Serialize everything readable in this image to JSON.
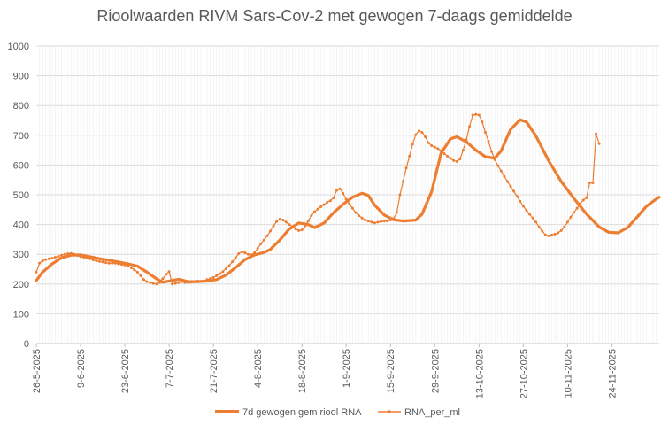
{
  "chart_data": {
    "type": "line",
    "title": "Rioolwaarden RIVM Sars-Cov-2 met gewogen 7-daags gemiddelde",
    "xlabel": "",
    "ylabel": "",
    "ylim": [
      0,
      1000
    ],
    "ytick_labels": [
      "0",
      "100",
      "200",
      "300",
      "400",
      "500",
      "600",
      "700",
      "800",
      "900",
      "1000"
    ],
    "xlim": [
      "26-5-2025",
      "8-12-2025"
    ],
    "xtick_labels": [
      "26-5-2025",
      "9-6-2025",
      "23-6-2025",
      "7-7-2025",
      "21-7-2025",
      "4-8-2025",
      "18-8-2025",
      "1-9-2025",
      "15-9-2025",
      "29-9-2025",
      "13-10-2025",
      "27-10-2025",
      "10-11-2025",
      "24-11-2025"
    ],
    "grid": true,
    "legend_position": "bottom",
    "colors": {
      "smoothed": "#ED7D31",
      "raw": "#ED7D31",
      "grid": "#D9D9D9",
      "axis": "#BFBFBF",
      "text": "#595959"
    },
    "series": [
      {
        "name": "7d gewogen gem riool RNA",
        "style": "thick-line",
        "points": [
          [
            "26-5-2025",
            212
          ],
          [
            "28-5-2025",
            240
          ],
          [
            "31-5-2025",
            268
          ],
          [
            "3-6-2025",
            288
          ],
          [
            "6-6-2025",
            297
          ],
          [
            "9-6-2025",
            298
          ],
          [
            "12-6-2025",
            292
          ],
          [
            "15-6-2025",
            285
          ],
          [
            "18-6-2025",
            280
          ],
          [
            "21-6-2025",
            274
          ],
          [
            "24-6-2025",
            268
          ],
          [
            "27-6-2025",
            260
          ],
          [
            "30-6-2025",
            240
          ],
          [
            "3-7-2025",
            218
          ],
          [
            "5-7-2025",
            206
          ],
          [
            "7-7-2025",
            210
          ],
          [
            "10-7-2025",
            216
          ],
          [
            "13-7-2025",
            208
          ],
          [
            "16-7-2025",
            208
          ],
          [
            "19-7-2025",
            210
          ],
          [
            "22-7-2025",
            215
          ],
          [
            "25-7-2025",
            230
          ],
          [
            "28-7-2025",
            255
          ],
          [
            "31-7-2025",
            282
          ],
          [
            "3-8-2025",
            298
          ],
          [
            "6-8-2025",
            306
          ],
          [
            "8-8-2025",
            316
          ],
          [
            "11-8-2025",
            348
          ],
          [
            "14-8-2025",
            385
          ],
          [
            "17-8-2025",
            405
          ],
          [
            "20-8-2025",
            400
          ],
          [
            "22-8-2025",
            390
          ],
          [
            "25-8-2025",
            405
          ],
          [
            "28-8-2025",
            440
          ],
          [
            "31-8-2025",
            468
          ],
          [
            "3-9-2025",
            492
          ],
          [
            "6-9-2025",
            505
          ],
          [
            "8-9-2025",
            498
          ],
          [
            "10-9-2025",
            465
          ],
          [
            "13-9-2025",
            432
          ],
          [
            "16-9-2025",
            416
          ],
          [
            "19-9-2025",
            412
          ],
          [
            "23-9-2025",
            415
          ],
          [
            "25-9-2025",
            435
          ],
          [
            "28-9-2025",
            510
          ],
          [
            "1-10-2025",
            640
          ],
          [
            "4-10-2025",
            688
          ],
          [
            "6-10-2025",
            695
          ],
          [
            "9-10-2025",
            678
          ],
          [
            "12-10-2025",
            650
          ],
          [
            "15-10-2025",
            628
          ],
          [
            "18-10-2025",
            623
          ],
          [
            "20-10-2025",
            648
          ],
          [
            "23-10-2025",
            720
          ],
          [
            "26-10-2025",
            752
          ],
          [
            "28-10-2025",
            745
          ],
          [
            "31-10-2025",
            698
          ],
          [
            "4-11-2025",
            615
          ],
          [
            "8-11-2025",
            545
          ],
          [
            "12-11-2025",
            488
          ],
          [
            "16-11-2025",
            435
          ],
          [
            "20-11-2025",
            392
          ],
          [
            "23-11-2025",
            374
          ],
          [
            "26-11-2025",
            372
          ],
          [
            "29-11-2025",
            390
          ],
          [
            "2-12-2025",
            425
          ],
          [
            "5-12-2025",
            462
          ],
          [
            "8-12-2025",
            485
          ],
          [
            "9-12-2025",
            492
          ]
        ]
      },
      {
        "name": "RNA_per_ml",
        "style": "thin-line-with-markers",
        "points": [
          [
            "26-5-2025",
            240
          ],
          [
            "27-5-2025",
            270
          ],
          [
            "28-5-2025",
            278
          ],
          [
            "29-5-2025",
            282
          ],
          [
            "30-5-2025",
            285
          ],
          [
            "31-5-2025",
            287
          ],
          [
            "1-6-2025",
            290
          ],
          [
            "2-6-2025",
            293
          ],
          [
            "3-6-2025",
            297
          ],
          [
            "4-6-2025",
            300
          ],
          [
            "5-6-2025",
            302
          ],
          [
            "6-6-2025",
            303
          ],
          [
            "7-6-2025",
            300
          ],
          [
            "8-6-2025",
            296
          ],
          [
            "9-6-2025",
            292
          ],
          [
            "10-6-2025",
            290
          ],
          [
            "11-6-2025",
            288
          ],
          [
            "12-6-2025",
            285
          ],
          [
            "13-6-2025",
            281
          ],
          [
            "14-6-2025",
            278
          ],
          [
            "15-6-2025",
            276
          ],
          [
            "16-6-2025",
            274
          ],
          [
            "17-6-2025",
            272
          ],
          [
            "18-6-2025",
            270
          ],
          [
            "19-6-2025",
            270
          ],
          [
            "20-6-2025",
            270
          ],
          [
            "21-6-2025",
            268
          ],
          [
            "22-6-2025",
            266
          ],
          [
            "23-6-2025",
            264
          ],
          [
            "24-6-2025",
            260
          ],
          [
            "25-6-2025",
            255
          ],
          [
            "26-6-2025",
            248
          ],
          [
            "27-6-2025",
            240
          ],
          [
            "28-6-2025",
            228
          ],
          [
            "29-6-2025",
            215
          ],
          [
            "30-6-2025",
            208
          ],
          [
            "1-7-2025",
            205
          ],
          [
            "2-7-2025",
            202
          ],
          [
            "3-7-2025",
            200
          ],
          [
            "4-7-2025",
            205
          ],
          [
            "5-7-2025",
            218
          ],
          [
            "6-7-2025",
            232
          ],
          [
            "7-7-2025",
            242
          ],
          [
            "8-7-2025",
            200
          ],
          [
            "9-7-2025",
            202
          ],
          [
            "10-7-2025",
            205
          ],
          [
            "11-7-2025",
            208
          ],
          [
            "12-7-2025",
            205
          ],
          [
            "13-7-2025",
            205
          ],
          [
            "14-7-2025",
            206
          ],
          [
            "15-7-2025",
            208
          ],
          [
            "16-7-2025",
            210
          ],
          [
            "17-7-2025",
            208
          ],
          [
            "18-7-2025",
            210
          ],
          [
            "19-7-2025",
            215
          ],
          [
            "20-7-2025",
            218
          ],
          [
            "21-7-2025",
            222
          ],
          [
            "22-7-2025",
            228
          ],
          [
            "23-7-2025",
            235
          ],
          [
            "24-7-2025",
            242
          ],
          [
            "25-7-2025",
            252
          ],
          [
            "26-7-2025",
            262
          ],
          [
            "27-7-2025",
            275
          ],
          [
            "28-7-2025",
            288
          ],
          [
            "29-7-2025",
            302
          ],
          [
            "30-7-2025",
            308
          ],
          [
            "31-7-2025",
            305
          ],
          [
            "1-8-2025",
            300
          ],
          [
            "2-8-2025",
            298
          ],
          [
            "3-8-2025",
            305
          ],
          [
            "4-8-2025",
            320
          ],
          [
            "5-8-2025",
            335
          ],
          [
            "6-8-2025",
            348
          ],
          [
            "7-8-2025",
            362
          ],
          [
            "8-8-2025",
            378
          ],
          [
            "9-8-2025",
            395
          ],
          [
            "10-8-2025",
            410
          ],
          [
            "11-8-2025",
            418
          ],
          [
            "12-8-2025",
            415
          ],
          [
            "13-8-2025",
            408
          ],
          [
            "14-8-2025",
            400
          ],
          [
            "15-8-2025",
            393
          ],
          [
            "16-8-2025",
            385
          ],
          [
            "17-8-2025",
            380
          ],
          [
            "18-8-2025",
            382
          ],
          [
            "19-8-2025",
            395
          ],
          [
            "20-8-2025",
            412
          ],
          [
            "21-8-2025",
            430
          ],
          [
            "22-8-2025",
            443
          ],
          [
            "23-8-2025",
            452
          ],
          [
            "24-8-2025",
            460
          ],
          [
            "25-8-2025",
            467
          ],
          [
            "26-8-2025",
            475
          ],
          [
            "27-8-2025",
            480
          ],
          [
            "28-8-2025",
            490
          ],
          [
            "29-8-2025",
            515
          ],
          [
            "30-8-2025",
            520
          ],
          [
            "31-8-2025",
            505
          ],
          [
            "1-9-2025",
            485
          ],
          [
            "2-9-2025",
            470
          ],
          [
            "3-9-2025",
            455
          ],
          [
            "4-9-2025",
            440
          ],
          [
            "5-9-2025",
            430
          ],
          [
            "6-9-2025",
            422
          ],
          [
            "7-9-2025",
            415
          ],
          [
            "8-9-2025",
            412
          ],
          [
            "9-9-2025",
            408
          ],
          [
            "10-9-2025",
            405
          ],
          [
            "11-9-2025",
            408
          ],
          [
            "12-9-2025",
            410
          ],
          [
            "13-9-2025",
            412
          ],
          [
            "14-9-2025",
            412
          ],
          [
            "15-9-2025",
            415
          ],
          [
            "16-9-2025",
            420
          ],
          [
            "17-9-2025",
            440
          ],
          [
            "18-9-2025",
            500
          ],
          [
            "19-9-2025",
            545
          ],
          [
            "20-9-2025",
            590
          ],
          [
            "21-9-2025",
            630
          ],
          [
            "22-9-2025",
            670
          ],
          [
            "23-9-2025",
            702
          ],
          [
            "24-9-2025",
            715
          ],
          [
            "25-9-2025",
            710
          ],
          [
            "26-9-2025",
            695
          ],
          [
            "27-9-2025",
            675
          ],
          [
            "28-9-2025",
            665
          ],
          [
            "29-9-2025",
            660
          ],
          [
            "30-9-2025",
            655
          ],
          [
            "1-10-2025",
            648
          ],
          [
            "2-10-2025",
            638
          ],
          [
            "3-10-2025",
            630
          ],
          [
            "4-10-2025",
            622
          ],
          [
            "5-10-2025",
            615
          ],
          [
            "6-10-2025",
            612
          ],
          [
            "7-10-2025",
            620
          ],
          [
            "8-10-2025",
            650
          ],
          [
            "9-10-2025",
            685
          ],
          [
            "10-10-2025",
            730
          ],
          [
            "11-10-2025",
            768
          ],
          [
            "12-10-2025",
            770
          ],
          [
            "13-10-2025",
            768
          ],
          [
            "14-10-2025",
            745
          ],
          [
            "15-10-2025",
            710
          ],
          [
            "16-10-2025",
            680
          ],
          [
            "17-10-2025",
            645
          ],
          [
            "18-10-2025",
            618
          ],
          [
            "19-10-2025",
            598
          ],
          [
            "20-10-2025",
            580
          ],
          [
            "21-10-2025",
            562
          ],
          [
            "22-10-2025",
            545
          ],
          [
            "23-10-2025",
            528
          ],
          [
            "24-10-2025",
            512
          ],
          [
            "25-10-2025",
            495
          ],
          [
            "26-10-2025",
            478
          ],
          [
            "27-10-2025",
            462
          ],
          [
            "28-10-2025",
            448
          ],
          [
            "29-10-2025",
            435
          ],
          [
            "30-10-2025",
            422
          ],
          [
            "31-10-2025",
            408
          ],
          [
            "1-11-2025",
            392
          ],
          [
            "2-11-2025",
            378
          ],
          [
            "3-11-2025",
            365
          ],
          [
            "4-11-2025",
            362
          ],
          [
            "5-11-2025",
            365
          ],
          [
            "6-11-2025",
            368
          ],
          [
            "7-11-2025",
            372
          ],
          [
            "8-11-2025",
            380
          ],
          [
            "9-11-2025",
            392
          ],
          [
            "10-11-2025",
            408
          ],
          [
            "11-11-2025",
            425
          ],
          [
            "12-11-2025",
            440
          ],
          [
            "13-11-2025",
            455
          ],
          [
            "14-11-2025",
            470
          ],
          [
            "15-11-2025",
            482
          ],
          [
            "16-11-2025",
            490
          ],
          [
            "17-11-2025",
            540
          ],
          [
            "18-11-2025",
            540
          ],
          [
            "19-11-2025",
            705
          ],
          [
            "20-11-2025",
            672
          ]
        ]
      }
    ]
  }
}
